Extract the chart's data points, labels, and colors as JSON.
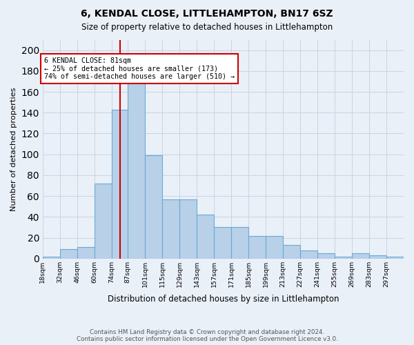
{
  "title_line1": "6, KENDAL CLOSE, LITTLEHAMPTON, BN17 6SZ",
  "title_line2": "Size of property relative to detached houses in Littlehampton",
  "xlabel": "Distribution of detached houses by size in Littlehampton",
  "ylabel": "Number of detached properties",
  "footnote1": "Contains HM Land Registry data © Crown copyright and database right 2024.",
  "footnote2": "Contains public sector information licensed under the Open Government Licence v3.0.",
  "bin_labels": [
    "18sqm",
    "32sqm",
    "46sqm",
    "60sqm",
    "74sqm",
    "87sqm",
    "101sqm",
    "115sqm",
    "129sqm",
    "143sqm",
    "157sqm",
    "171sqm",
    "185sqm",
    "199sqm",
    "213sqm",
    "227sqm",
    "241sqm",
    "255sqm",
    "269sqm",
    "283sqm",
    "297sqm"
  ],
  "bar_values": [
    2,
    9,
    11,
    72,
    143,
    169,
    99,
    57,
    57,
    42,
    30,
    30,
    22,
    22,
    13,
    8,
    5,
    2,
    5,
    3,
    2
  ],
  "bar_color": "#b8d0e8",
  "bar_edge_color": "#6aaad4",
  "grid_color": "#c8d4e4",
  "bg_color": "#eaf0f8",
  "vline_x": 81,
  "vline_color": "#cc0000",
  "annotation_text_line1": "6 KENDAL CLOSE: 81sqm",
  "annotation_text_line2": "← 25% of detached houses are smaller (173)",
  "annotation_text_line3": "74% of semi-detached houses are larger (510) →",
  "annotation_box_facecolor": "white",
  "annotation_box_edgecolor": "#cc0000",
  "ylim": [
    0,
    210
  ],
  "yticks": [
    0,
    20,
    40,
    60,
    80,
    100,
    120,
    140,
    160,
    180,
    200
  ],
  "bin_edges": [
    18,
    32,
    46,
    60,
    74,
    87,
    101,
    115,
    129,
    143,
    157,
    171,
    185,
    199,
    213,
    227,
    241,
    255,
    269,
    283,
    297,
    311
  ]
}
